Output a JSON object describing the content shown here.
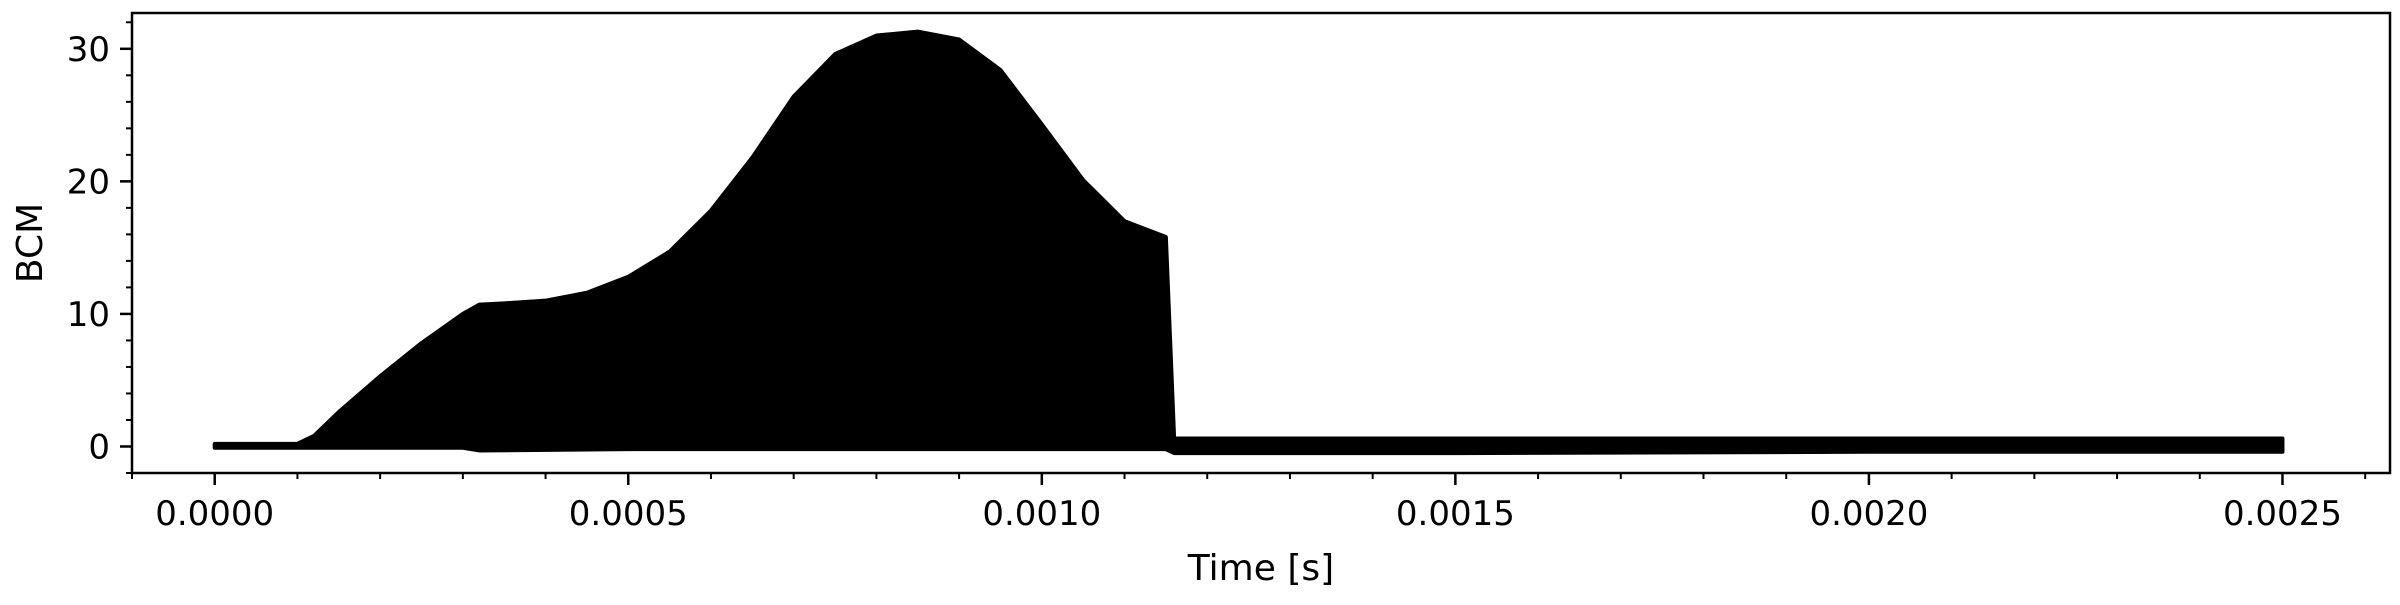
{
  "chart_data": {
    "type": "area",
    "title": "",
    "xlabel": "Time [s]",
    "ylabel": "BCM",
    "xlim": [
      -0.0001,
      0.00263
    ],
    "ylim": [
      -2,
      32.7
    ],
    "x_ticks": [
      0.0,
      0.0005,
      0.001,
      0.0015,
      0.002,
      0.0025
    ],
    "x_tick_labels": [
      "0.0000",
      "0.0005",
      "0.0010",
      "0.0015",
      "0.0020",
      "0.0025"
    ],
    "y_ticks": [
      0,
      10,
      20,
      30
    ],
    "y_tick_labels": [
      "0",
      "10",
      "20",
      "30"
    ],
    "grid": false,
    "legend": "none",
    "series": [
      {
        "color": "#000000",
        "upper_envelope": {
          "x": [
            0.0,
            0.0001,
            0.00012,
            0.00015,
            0.0002,
            0.00025,
            0.0003,
            0.00032,
            0.00035,
            0.0004,
            0.00045,
            0.0005,
            0.00055,
            0.0006,
            0.00065,
            0.0007,
            0.00075,
            0.0008,
            0.00085,
            0.0009,
            0.00095,
            0.001,
            0.00105,
            0.0011,
            0.00115,
            0.00116,
            0.0012,
            0.0015,
            0.002,
            0.0025
          ],
          "y": [
            0.2,
            0.2,
            0.8,
            2.6,
            5.3,
            7.8,
            10.0,
            10.7,
            10.8,
            11.0,
            11.6,
            12.8,
            14.7,
            17.8,
            21.8,
            26.4,
            29.6,
            31.0,
            31.3,
            30.7,
            28.4,
            24.3,
            20.1,
            17.0,
            15.8,
            0.6,
            0.6,
            0.6,
            0.6,
            0.6
          ]
        },
        "lower_envelope": {
          "x": [
            0.0,
            0.0001,
            0.0003,
            0.00032,
            0.0005,
            0.0008,
            0.00115,
            0.00116,
            0.0015,
            0.002,
            0.0025
          ],
          "y": [
            -0.1,
            -0.1,
            -0.1,
            -0.3,
            -0.2,
            -0.2,
            -0.2,
            -0.5,
            -0.5,
            -0.4,
            -0.4
          ]
        }
      }
    ]
  }
}
